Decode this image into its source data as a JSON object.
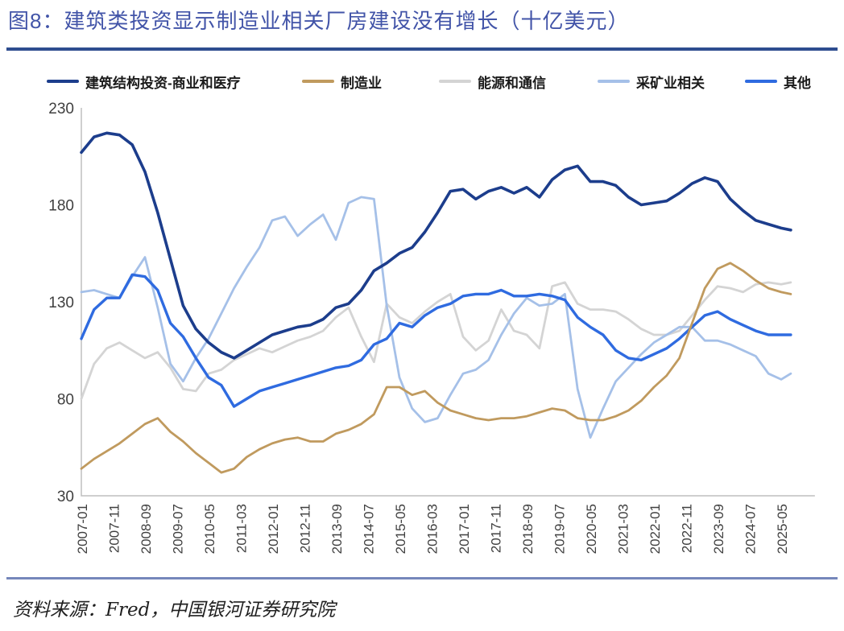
{
  "title": "图8：建筑类投资显示制造业相关厂房建设没有增长（十亿美元）",
  "source": "资料来源：Fred，中国银河证券研究院",
  "colors": {
    "title_text": "#4254a8",
    "title_rule": "#2e4d8f",
    "footer_rule": "#7587bb",
    "axis_line": "#bfbfbf",
    "tick_text": "#404040"
  },
  "chart_data": {
    "type": "line",
    "title": "图8：建筑类投资显示制造业相关厂房建设没有增长（十亿美元）",
    "xlabel": "",
    "ylabel": "十亿美元",
    "ylim": [
      30,
      230
    ],
    "y_ticks": [
      230,
      180,
      130,
      80,
      30
    ],
    "grid": false,
    "legend_position": "top",
    "x_unit": "months since 2007-01",
    "x_tick_months": [
      0,
      10,
      20,
      30,
      40,
      50,
      60,
      70,
      80,
      90,
      100,
      110,
      120,
      130,
      140,
      150,
      160,
      170,
      180,
      190,
      200,
      210,
      220
    ],
    "x_tick_labels": [
      "2007-01",
      "2007-11",
      "2008-09",
      "2009-07",
      "2010-05",
      "2011-03",
      "2012-01",
      "2012-11",
      "2013-09",
      "2014-07",
      "2015-05",
      "2016-03",
      "2017-01",
      "2017-11",
      "2018-09",
      "2019-07",
      "2020-05",
      "2021-03",
      "2022-01",
      "2022-11",
      "2023-09",
      "2024-07",
      "2025-05"
    ],
    "sample_months": [
      0,
      4,
      8,
      12,
      16,
      20,
      24,
      28,
      32,
      36,
      40,
      44,
      48,
      52,
      56,
      60,
      64,
      68,
      72,
      76,
      80,
      84,
      88,
      92,
      96,
      100,
      104,
      108,
      112,
      116,
      120,
      124,
      128,
      132,
      136,
      140,
      144,
      148,
      152,
      156,
      160,
      164,
      168,
      172,
      176,
      180,
      184,
      188,
      192,
      196,
      200,
      204,
      208,
      212,
      216,
      220,
      223
    ],
    "series": [
      {
        "name": "建筑结构投资-商业和医疗",
        "color": "#1c3d8c",
        "width": 3.6,
        "values": [
          207,
          215,
          217,
          216,
          211,
          197,
          176,
          152,
          128,
          116,
          109,
          104,
          101,
          105,
          109,
          113,
          115,
          117,
          118,
          121,
          127,
          129,
          136,
          146,
          150,
          155,
          158,
          166,
          176,
          187,
          188,
          183,
          187,
          189,
          186,
          189,
          184,
          193,
          198,
          200,
          192,
          192,
          190,
          184,
          180,
          181,
          182,
          186,
          191,
          194,
          192,
          183,
          177,
          172,
          170,
          168,
          167
        ]
      },
      {
        "name": "制造业",
        "color": "#c09a5e",
        "width": 2.8,
        "values": [
          44,
          49,
          53,
          57,
          62,
          67,
          70,
          63,
          58,
          52,
          47,
          42,
          44,
          50,
          54,
          57,
          59,
          60,
          58,
          58,
          62,
          64,
          67,
          72,
          86,
          86,
          82,
          84,
          78,
          74,
          72,
          70,
          69,
          70,
          70,
          71,
          73,
          75,
          74,
          70,
          69,
          69,
          71,
          74,
          79,
          86,
          92,
          101,
          119,
          137,
          147,
          150,
          146,
          141,
          137,
          135,
          134
        ]
      },
      {
        "name": "能源和通信",
        "color": "#d4d4d4",
        "width": 2.8,
        "values": [
          80,
          98,
          106,
          109,
          105,
          101,
          104,
          96,
          85,
          84,
          93,
          95,
          100,
          103,
          106,
          104,
          107,
          110,
          112,
          115,
          122,
          127,
          112,
          99,
          129,
          122,
          119,
          125,
          130,
          134,
          112,
          105,
          110,
          126,
          115,
          113,
          106,
          138,
          140,
          129,
          126,
          126,
          125,
          121,
          116,
          113,
          113,
          115,
          123,
          131,
          138,
          137,
          135,
          139,
          140,
          139,
          140
        ]
      },
      {
        "name": "采矿业相关",
        "color": "#a5c0e8",
        "width": 2.8,
        "values": [
          135,
          136,
          134,
          132,
          143,
          153,
          127,
          98,
          89,
          101,
          111,
          124,
          137,
          148,
          158,
          172,
          174,
          164,
          170,
          175,
          162,
          181,
          184,
          183,
          128,
          91,
          75,
          68,
          70,
          82,
          93,
          95,
          100,
          113,
          124,
          132,
          128,
          129,
          134,
          85,
          60,
          75,
          89,
          96,
          103,
          109,
          113,
          117,
          117,
          110,
          110,
          108,
          105,
          102,
          93,
          90,
          93
        ]
      },
      {
        "name": "其他",
        "color": "#2f6be0",
        "width": 3.4,
        "values": [
          111,
          126,
          132,
          132,
          144,
          143,
          136,
          119,
          112,
          101,
          91,
          87,
          76,
          80,
          84,
          86,
          88,
          90,
          92,
          94,
          96,
          97,
          100,
          108,
          111,
          119,
          117,
          123,
          127,
          129,
          133,
          134,
          134,
          136,
          133,
          133,
          134,
          133,
          131,
          122,
          117,
          113,
          105,
          101,
          100,
          103,
          106,
          111,
          117,
          123,
          125,
          121,
          118,
          115,
          113,
          113,
          113
        ]
      }
    ]
  },
  "legend": {
    "items": [
      "建筑结构投资-商业和医疗",
      "制造业",
      "能源和通信",
      "采矿业相关",
      "其他"
    ]
  }
}
